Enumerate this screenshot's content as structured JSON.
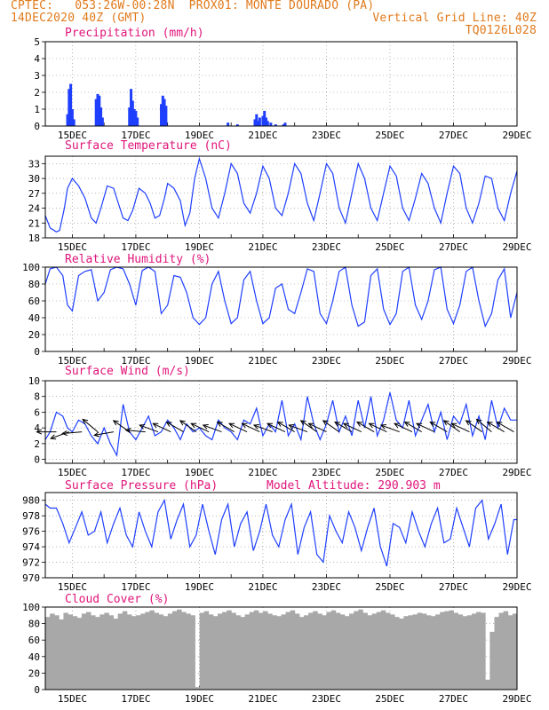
{
  "header": {
    "line1_left": "CPTEC:   053:26W-00:28N  PROX01: MONTE DOURADO (PA)",
    "line2_left": "14DEC2020 40Z (GMT)",
    "line2_right": "Vertical Grid Line: 40Z",
    "line3_right": "TQ0126L028"
  },
  "model_altitude": "Model Altitude: 290.903 m",
  "colors": {
    "header": "#e07a1c",
    "title": "#e0147a",
    "series": "#1f3fff",
    "cloud": "#a8a8a8",
    "grid": "#888888",
    "wind_vector": "#000000"
  },
  "x_tick_labels": [
    "15DEC",
    "17DEC",
    "19DEC",
    "21DEC",
    "23DEC",
    "25DEC",
    "27DEC",
    "29DEC"
  ],
  "chart_data": [
    {
      "type": "bar",
      "title": "Precipitation (mm/h)",
      "ylim": [
        0,
        5
      ],
      "yticks": [
        0,
        1,
        2,
        3,
        4,
        5
      ],
      "x_range_days": [
        14.15,
        29.0
      ],
      "values": [
        [
          14.85,
          0.7
        ],
        [
          14.9,
          2.2
        ],
        [
          14.95,
          2.5
        ],
        [
          15.0,
          1.0
        ],
        [
          15.05,
          0.4
        ],
        [
          15.75,
          1.6
        ],
        [
          15.8,
          1.9
        ],
        [
          15.85,
          1.8
        ],
        [
          15.9,
          1.1
        ],
        [
          15.95,
          0.5
        ],
        [
          16.8,
          1.1
        ],
        [
          16.85,
          2.2
        ],
        [
          16.9,
          1.5
        ],
        [
          16.95,
          1.0
        ],
        [
          17.0,
          0.9
        ],
        [
          17.05,
          0.5
        ],
        [
          17.8,
          1.3
        ],
        [
          17.85,
          1.8
        ],
        [
          17.9,
          1.6
        ],
        [
          17.95,
          1.2
        ],
        [
          19.9,
          0.2
        ],
        [
          20.2,
          0.1
        ],
        [
          20.75,
          0.4
        ],
        [
          20.8,
          0.7
        ],
        [
          20.85,
          0.3
        ],
        [
          20.9,
          0.5
        ],
        [
          21.0,
          0.6
        ],
        [
          21.05,
          0.9
        ],
        [
          21.1,
          0.5
        ],
        [
          21.15,
          0.3
        ],
        [
          21.25,
          0.2
        ],
        [
          21.4,
          0.1
        ],
        [
          21.65,
          0.1
        ],
        [
          21.7,
          0.2
        ]
      ]
    },
    {
      "type": "line",
      "title": "Surface Temperature (nC)",
      "ylim": [
        18,
        34.5
      ],
      "yticks": [
        18,
        21,
        24,
        27,
        30,
        33
      ],
      "x": [
        14.15,
        14.3,
        14.5,
        14.6,
        14.75,
        14.85,
        15.0,
        15.2,
        15.4,
        15.6,
        15.75,
        15.9,
        16.1,
        16.3,
        16.45,
        16.6,
        16.75,
        16.9,
        17.1,
        17.3,
        17.45,
        17.6,
        17.75,
        17.9,
        18.0,
        18.2,
        18.4,
        18.55,
        18.7,
        18.85,
        19.0,
        19.2,
        19.4,
        19.6,
        19.8,
        20.0,
        20.2,
        20.4,
        20.6,
        20.8,
        21.0,
        21.2,
        21.4,
        21.6,
        21.8,
        22.0,
        22.2,
        22.4,
        22.6,
        22.8,
        23.0,
        23.2,
        23.4,
        23.6,
        23.8,
        24.0,
        24.2,
        24.4,
        24.6,
        24.8,
        25.0,
        25.2,
        25.4,
        25.6,
        25.8,
        26.0,
        26.2,
        26.4,
        26.6,
        26.8,
        27.0,
        27.2,
        27.4,
        27.6,
        27.8,
        28.0,
        28.2,
        28.4,
        28.6,
        28.8,
        29.0
      ],
      "values": [
        22.5,
        20.0,
        19.2,
        19.5,
        24.0,
        28.0,
        30.0,
        28.5,
        26.0,
        22.0,
        21.0,
        24.0,
        28.5,
        28.0,
        25.0,
        22.0,
        21.5,
        23.5,
        28.0,
        27.0,
        25.0,
        22.0,
        22.5,
        26.0,
        29.0,
        28.0,
        25.5,
        20.5,
        23.0,
        30.0,
        34.0,
        30.0,
        24.0,
        22.0,
        27.0,
        33.0,
        31.0,
        25.0,
        23.0,
        27.0,
        32.5,
        30.0,
        24.0,
        22.5,
        27.0,
        33.0,
        31.0,
        25.0,
        21.5,
        27.0,
        33.0,
        31.0,
        24.0,
        21.0,
        27.0,
        33.0,
        30.0,
        24.0,
        21.5,
        27.0,
        32.5,
        30.5,
        24.0,
        21.5,
        26.0,
        31.0,
        29.0,
        24.0,
        21.0,
        27.0,
        32.5,
        31.0,
        24.0,
        21.0,
        25.0,
        30.5,
        30.0,
        24.0,
        21.5,
        27.0,
        31.5
      ]
    },
    {
      "type": "line",
      "title": "Relative Humidity (%)",
      "ylim": [
        0,
        100
      ],
      "yticks": [
        0,
        20,
        40,
        60,
        80,
        100
      ],
      "x": [
        14.15,
        14.3,
        14.5,
        14.7,
        14.85,
        15.0,
        15.2,
        15.4,
        15.6,
        15.8,
        16.0,
        16.2,
        16.4,
        16.6,
        16.8,
        17.0,
        17.2,
        17.4,
        17.6,
        17.8,
        18.0,
        18.2,
        18.4,
        18.6,
        18.8,
        19.0,
        19.2,
        19.4,
        19.6,
        19.8,
        20.0,
        20.2,
        20.4,
        20.6,
        20.8,
        21.0,
        21.2,
        21.4,
        21.6,
        21.8,
        22.0,
        22.2,
        22.4,
        22.6,
        22.8,
        23.0,
        23.2,
        23.4,
        23.6,
        23.8,
        24.0,
        24.2,
        24.4,
        24.6,
        24.8,
        25.0,
        25.2,
        25.4,
        25.6,
        25.8,
        26.0,
        26.2,
        26.4,
        26.6,
        26.8,
        27.0,
        27.2,
        27.4,
        27.6,
        27.8,
        28.0,
        28.2,
        28.4,
        28.6,
        28.8,
        29.0
      ],
      "values": [
        80,
        98,
        100,
        90,
        55,
        48,
        90,
        95,
        97,
        60,
        70,
        97,
        100,
        98,
        80,
        55,
        96,
        100,
        95,
        45,
        55,
        90,
        88,
        70,
        40,
        32,
        40,
        80,
        95,
        60,
        33,
        40,
        85,
        95,
        60,
        33,
        40,
        75,
        80,
        50,
        45,
        70,
        98,
        95,
        45,
        33,
        60,
        95,
        100,
        55,
        30,
        35,
        90,
        98,
        50,
        32,
        45,
        95,
        100,
        55,
        38,
        60,
        97,
        100,
        50,
        33,
        55,
        95,
        100,
        60,
        30,
        45,
        85,
        98,
        40,
        70
      ]
    },
    {
      "type": "line",
      "title": "Surface Wind (m/s)",
      "ylim": [
        -0.5,
        10
      ],
      "yticks": [
        0,
        2,
        4,
        6,
        8,
        10
      ],
      "x": [
        14.15,
        14.3,
        14.5,
        14.7,
        14.85,
        15.0,
        15.2,
        15.4,
        15.6,
        15.8,
        16.0,
        16.2,
        16.4,
        16.6,
        16.8,
        17.0,
        17.2,
        17.4,
        17.6,
        17.8,
        18.0,
        18.2,
        18.4,
        18.6,
        18.8,
        19.0,
        19.2,
        19.4,
        19.6,
        19.8,
        20.0,
        20.2,
        20.4,
        20.6,
        20.8,
        21.0,
        21.2,
        21.4,
        21.6,
        21.8,
        22.0,
        22.2,
        22.4,
        22.6,
        22.8,
        23.0,
        23.2,
        23.4,
        23.6,
        23.8,
        24.0,
        24.2,
        24.4,
        24.6,
        24.8,
        25.0,
        25.2,
        25.4,
        25.6,
        25.8,
        26.0,
        26.2,
        26.4,
        26.6,
        26.8,
        27.0,
        27.2,
        27.4,
        27.6,
        27.8,
        28.0,
        28.2,
        28.4,
        28.6,
        28.8,
        29.0
      ],
      "values": [
        2.5,
        3.5,
        6.0,
        5.5,
        4.0,
        3.5,
        5.0,
        4.5,
        3.0,
        2.0,
        4.0,
        2.0,
        0.5,
        7.0,
        3.5,
        2.5,
        4.0,
        5.5,
        3.0,
        3.5,
        5.0,
        4.0,
        2.5,
        4.5,
        3.5,
        4.0,
        3.0,
        2.5,
        5.0,
        4.0,
        3.5,
        2.5,
        5.0,
        4.5,
        6.5,
        3.0,
        4.5,
        3.5,
        7.5,
        3.0,
        4.5,
        2.5,
        8.0,
        4.5,
        2.5,
        4.5,
        7.5,
        3.5,
        5.5,
        3.0,
        7.5,
        4.0,
        8.0,
        3.0,
        5.0,
        8.5,
        5.0,
        4.0,
        7.5,
        3.0,
        5.0,
        7.0,
        3.5,
        6.0,
        2.5,
        5.5,
        4.5,
        7.0,
        3.0,
        5.5,
        2.5,
        7.5,
        4.0,
        6.5,
        5.0,
        5.0
      ],
      "vectors": [
        [
          14.5,
          180
        ],
        [
          14.9,
          160
        ],
        [
          15.3,
          175
        ],
        [
          15.8,
          220
        ],
        [
          16.3,
          170
        ],
        [
          16.8,
          215
        ],
        [
          17.3,
          185
        ],
        [
          17.7,
          200
        ],
        [
          18.1,
          205
        ],
        [
          18.5,
          210
        ],
        [
          18.9,
          215
        ],
        [
          19.3,
          205
        ],
        [
          19.7,
          200
        ],
        [
          20.1,
          210
        ],
        [
          20.5,
          205
        ],
        [
          20.9,
          205
        ],
        [
          21.3,
          200
        ],
        [
          21.7,
          205
        ],
        [
          22.0,
          210
        ],
        [
          22.4,
          200
        ],
        [
          22.7,
          215
        ],
        [
          23.0,
          205
        ],
        [
          23.4,
          215
        ],
        [
          23.8,
          210
        ],
        [
          24.1,
          205
        ],
        [
          24.5,
          210
        ],
        [
          24.9,
          205
        ],
        [
          25.3,
          200
        ],
        [
          25.7,
          205
        ],
        [
          26.0,
          210
        ],
        [
          26.4,
          205
        ],
        [
          26.8,
          210
        ],
        [
          27.2,
          215
        ],
        [
          27.5,
          205
        ],
        [
          27.9,
          215
        ],
        [
          28.2,
          220
        ],
        [
          28.6,
          210
        ],
        [
          28.9,
          210
        ]
      ]
    },
    {
      "type": "line",
      "title": "Surface Pressure (hPa)",
      "ylim": [
        970,
        981
      ],
      "yticks": [
        970,
        972,
        974,
        976,
        978,
        980
      ],
      "x": [
        14.15,
        14.3,
        14.5,
        14.7,
        14.9,
        15.1,
        15.3,
        15.5,
        15.7,
        15.9,
        16.1,
        16.3,
        16.5,
        16.7,
        16.9,
        17.1,
        17.3,
        17.5,
        17.7,
        17.9,
        18.1,
        18.3,
        18.5,
        18.7,
        18.9,
        19.1,
        19.3,
        19.5,
        19.7,
        19.9,
        20.1,
        20.3,
        20.5,
        20.7,
        20.9,
        21.1,
        21.3,
        21.5,
        21.7,
        21.9,
        22.1,
        22.3,
        22.5,
        22.7,
        22.9,
        23.1,
        23.3,
        23.5,
        23.7,
        23.9,
        24.1,
        24.3,
        24.5,
        24.7,
        24.9,
        25.1,
        25.3,
        25.5,
        25.7,
        25.9,
        26.1,
        26.3,
        26.5,
        26.7,
        26.9,
        27.1,
        27.3,
        27.5,
        27.7,
        27.9,
        28.1,
        28.3,
        28.5,
        28.7,
        28.9,
        29.0
      ],
      "values": [
        979.5,
        979.0,
        979.0,
        977.0,
        974.5,
        976.5,
        978.5,
        975.5,
        976.0,
        978.5,
        974.5,
        977.0,
        979.0,
        975.5,
        974.0,
        978.5,
        976.0,
        974.0,
        978.5,
        980.0,
        975.0,
        977.5,
        979.5,
        974.0,
        975.5,
        979.5,
        976.0,
        973.0,
        977.5,
        979.5,
        974.0,
        977.0,
        978.5,
        973.5,
        976.0,
        979.5,
        975.5,
        974.0,
        977.5,
        979.5,
        973.0,
        976.5,
        978.5,
        973.0,
        972.0,
        978.0,
        976.0,
        974.5,
        978.5,
        976.5,
        973.5,
        976.5,
        979.0,
        974.0,
        971.5,
        977.0,
        976.5,
        974.5,
        978.5,
        976.0,
        974.0,
        977.0,
        979.0,
        974.5,
        975.0,
        979.0,
        976.5,
        974.0,
        979.0,
        980.0,
        975.0,
        977.0,
        979.5,
        973.0,
        977.5,
        977.5
      ]
    },
    {
      "type": "bar",
      "title": "Cloud Cover (%)",
      "ylim": [
        0,
        100
      ],
      "yticks": [
        0,
        20,
        40,
        60,
        80,
        100
      ],
      "x_range_days": [
        14.15,
        29.0
      ],
      "values": [
        88,
        92,
        90,
        85,
        93,
        91,
        89,
        87,
        92,
        94,
        90,
        88,
        91,
        93,
        90,
        86,
        92,
        95,
        91,
        89,
        90,
        92,
        94,
        96,
        93,
        91,
        89,
        92,
        95,
        97,
        94,
        92,
        90,
        3,
        93,
        95,
        91,
        89,
        92,
        94,
        96,
        93,
        90,
        88,
        91,
        94,
        96,
        93,
        95,
        92,
        90,
        89,
        91,
        94,
        96,
        92,
        88,
        90,
        93,
        95,
        92,
        90,
        94,
        96,
        93,
        91,
        89,
        92,
        95,
        97,
        93,
        90,
        92,
        94,
        96,
        93,
        91,
        88,
        86,
        89,
        90,
        91,
        93,
        92,
        90,
        89,
        91,
        94,
        95,
        96,
        93,
        91,
        89,
        90,
        92,
        94,
        93,
        12,
        70,
        88,
        93,
        95,
        90,
        92
      ]
    }
  ]
}
